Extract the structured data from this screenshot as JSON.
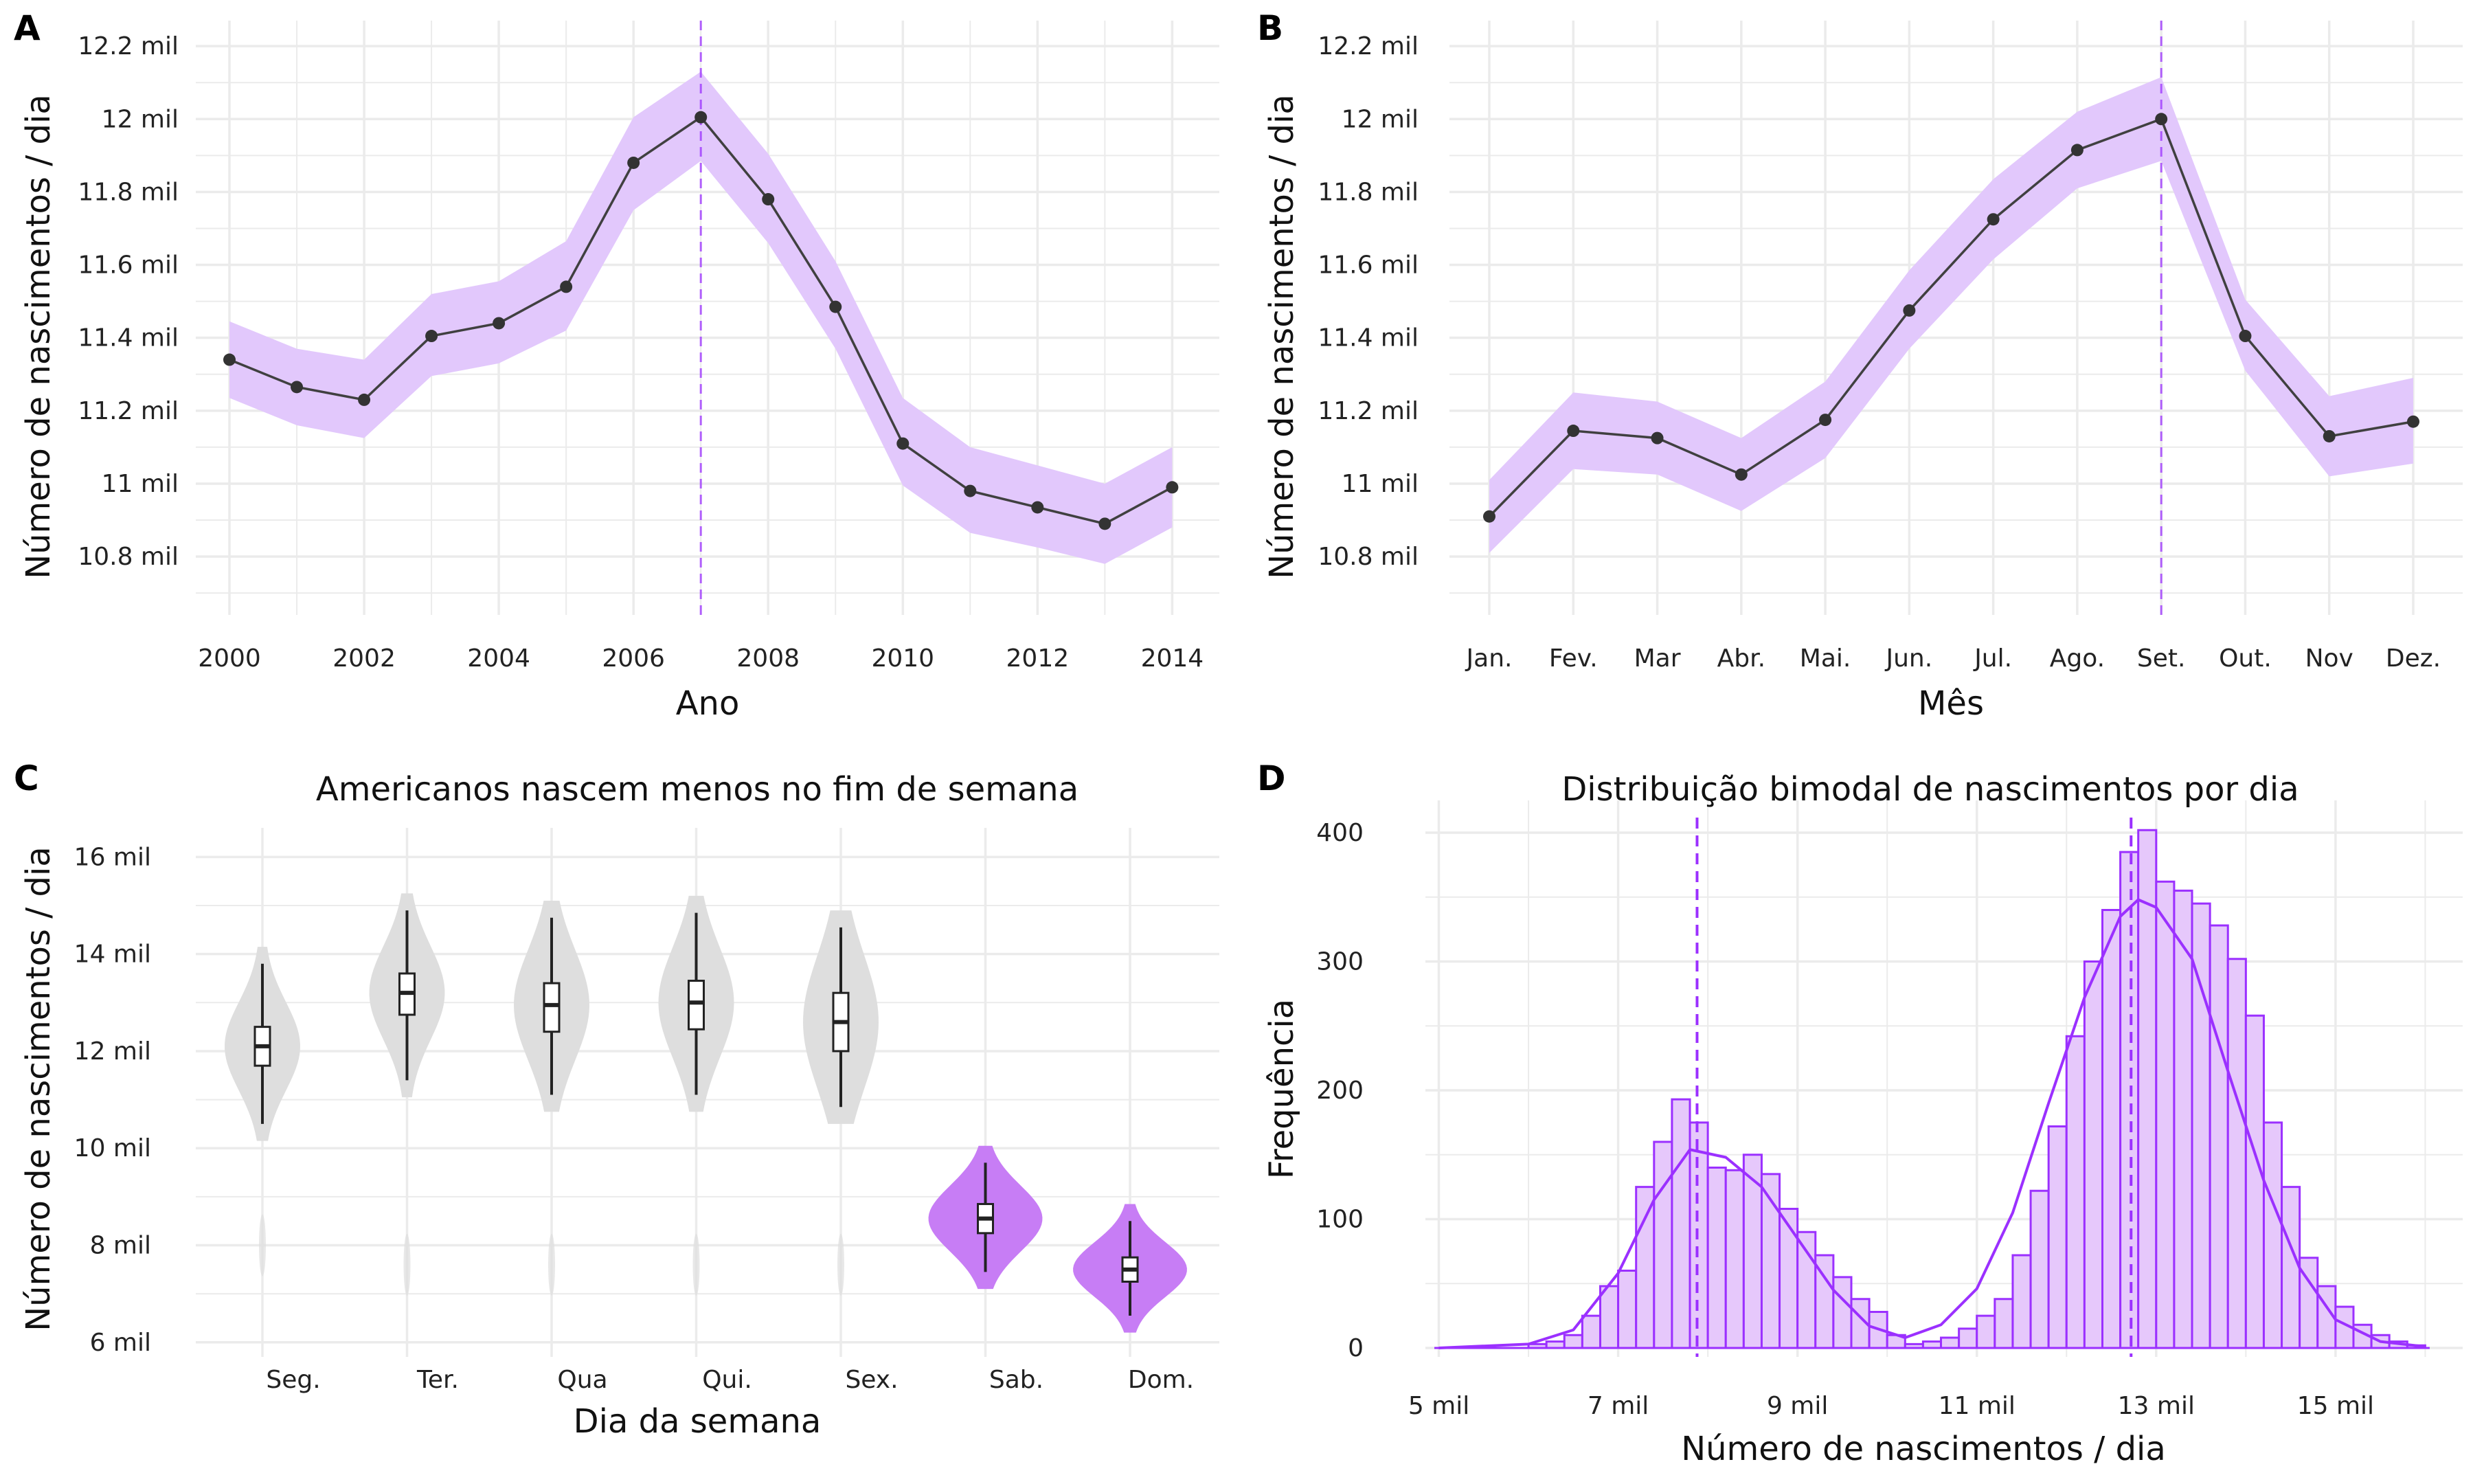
{
  "colors": {
    "accent": "#9b30ff",
    "band": "#e2c8fc",
    "line": "#404040",
    "point": "#333333",
    "violin_gray": "#dedede",
    "violin_purple": "#c77df5",
    "hist_fill": "#e6c8fb",
    "grid": "#ebebeb"
  },
  "panels": {
    "A": {
      "label": "A",
      "xlabel": "Ano",
      "ylabel": "Número de nascimentos / dia"
    },
    "B": {
      "label": "B",
      "xlabel": "Mês",
      "ylabel": "Número de nascimentos / dia"
    },
    "C": {
      "label": "C",
      "title": "Americanos nascem menos no fim de semana",
      "xlabel": "Dia da semana",
      "ylabel": "Número de nascimentos / dia"
    },
    "D": {
      "label": "D",
      "title": "Distribuição bimodal de nascimentos por dia",
      "xlabel": "Número de nascimentos / dia",
      "ylabel": "Frequência"
    }
  },
  "chart_data": [
    {
      "panel": "A",
      "type": "line",
      "x": [
        2000,
        2001,
        2002,
        2003,
        2004,
        2005,
        2006,
        2007,
        2008,
        2009,
        2010,
        2011,
        2012,
        2013,
        2014
      ],
      "series": [
        {
          "values": [
            11.34,
            11.265,
            11.23,
            11.405,
            11.44,
            11.54,
            11.88,
            12.005,
            11.78,
            11.485,
            11.11,
            10.98,
            10.935,
            10.89,
            10.99
          ],
          "lower": [
            11.235,
            11.16,
            11.125,
            11.295,
            11.33,
            11.42,
            11.75,
            11.885,
            11.66,
            11.37,
            10.995,
            10.865,
            10.825,
            10.78,
            10.88
          ],
          "upper": [
            11.445,
            11.37,
            11.34,
            11.52,
            11.555,
            11.665,
            12.005,
            12.13,
            11.905,
            11.61,
            11.235,
            11.1,
            11.05,
            11.0,
            11.1
          ]
        }
      ],
      "vline": 2007,
      "xticks": [
        2000,
        2002,
        2004,
        2006,
        2008,
        2010,
        2012,
        2014
      ],
      "xtick_labels": [
        "2000",
        "2002",
        "2004",
        "2006",
        "2008",
        "2010",
        "2012",
        "2014"
      ],
      "yticks": [
        10.8,
        11.0,
        11.2,
        11.4,
        11.6,
        11.8,
        12.0,
        12.2
      ],
      "ytick_labels": [
        "10.8 mil",
        "11 mil",
        "11.2 mil",
        "11.4 mil",
        "11.6 mil",
        "11.8 mil",
        "12 mil",
        "12.2 mil"
      ],
      "xlim": [
        1999.5,
        2014.7
      ],
      "ylim": [
        10.64,
        12.27
      ],
      "grid": true
    },
    {
      "panel": "B",
      "type": "line",
      "categories": [
        "Jan.",
        "Fev.",
        "Mar",
        "Abr.",
        "Mai.",
        "Jun.",
        "Jul.",
        "Ago.",
        "Set.",
        "Out.",
        "Nov",
        "Dez."
      ],
      "series": [
        {
          "values": [
            10.91,
            11.145,
            11.125,
            11.025,
            11.175,
            11.475,
            11.725,
            11.915,
            12.0,
            11.405,
            11.13,
            11.17
          ],
          "lower": [
            10.81,
            11.04,
            11.025,
            10.925,
            11.07,
            11.37,
            11.615,
            11.81,
            11.885,
            11.31,
            11.02,
            11.055
          ],
          "upper": [
            11.01,
            11.25,
            11.225,
            11.125,
            11.28,
            11.585,
            11.835,
            12.02,
            12.115,
            11.505,
            11.24,
            11.29
          ]
        }
      ],
      "vline": "Set.",
      "yticks": [
        10.8,
        11.0,
        11.2,
        11.4,
        11.6,
        11.8,
        12.0,
        12.2
      ],
      "ytick_labels": [
        "10.8 mil",
        "11 mil",
        "11.2 mil",
        "11.4 mil",
        "11.6 mil",
        "11.8 mil",
        "12 mil",
        "12.2 mil"
      ],
      "ylim": [
        10.64,
        12.27
      ],
      "grid": true
    },
    {
      "panel": "C",
      "type": "violin",
      "title": "Americanos nascem menos no fim de semana",
      "categories": [
        "Seg.",
        "Ter.",
        "Qua",
        "Qui.",
        "Sex.",
        "Sab.",
        "Dom."
      ],
      "medians": [
        12.1,
        13.2,
        12.95,
        13.0,
        12.6,
        8.55,
        7.5
      ],
      "q1": [
        11.7,
        12.75,
        12.4,
        12.45,
        12.0,
        8.25,
        7.25
      ],
      "q3": [
        12.5,
        13.6,
        13.4,
        13.45,
        13.2,
        8.85,
        7.75
      ],
      "whisker_low": [
        10.5,
        11.4,
        11.1,
        11.1,
        10.85,
        7.45,
        6.55
      ],
      "whisker_high": [
        13.8,
        14.9,
        14.75,
        14.85,
        14.55,
        9.7,
        8.5
      ],
      "weekend": [
        false,
        false,
        false,
        false,
        false,
        true,
        true
      ],
      "yticks": [
        6,
        8,
        10,
        12,
        14,
        16
      ],
      "ytick_labels": [
        "6 mil",
        "8 mil",
        "10 mil",
        "12 mil",
        "14 mil",
        "16 mil"
      ],
      "ylim": [
        5.7,
        16.6
      ],
      "grid": true
    },
    {
      "panel": "D",
      "type": "bar",
      "title": "Distribuição bimodal de nascimentos por dia",
      "bin_width": 0.2,
      "bin_starts": [
        6.0,
        6.2,
        6.4,
        6.6,
        6.8,
        7.0,
        7.2,
        7.4,
        7.6,
        7.8,
        8.0,
        8.2,
        8.4,
        8.6,
        8.8,
        9.0,
        9.2,
        9.4,
        9.6,
        9.8,
        10.0,
        10.2,
        10.4,
        10.6,
        10.8,
        11.0,
        11.2,
        11.4,
        11.6,
        11.8,
        12.0,
        12.2,
        12.4,
        12.6,
        12.8,
        13.0,
        13.2,
        13.4,
        13.6,
        13.8,
        14.0,
        14.2,
        14.4,
        14.6,
        14.8,
        15.0,
        15.2,
        15.4,
        15.6,
        15.8
      ],
      "values": [
        3,
        5,
        10,
        25,
        48,
        60,
        125,
        160,
        193,
        175,
        140,
        138,
        150,
        135,
        108,
        90,
        72,
        55,
        38,
        28,
        10,
        3,
        5,
        8,
        15,
        25,
        38,
        72,
        122,
        172,
        242,
        300,
        340,
        385,
        402,
        362,
        355,
        345,
        328,
        302,
        258,
        175,
        125,
        70,
        48,
        32,
        18,
        10,
        5,
        2
      ],
      "density_curve": [
        [
          5.0,
          0
        ],
        [
          6.0,
          3
        ],
        [
          6.5,
          14
        ],
        [
          7.0,
          58
        ],
        [
          7.4,
          115
        ],
        [
          7.8,
          154
        ],
        [
          8.2,
          148
        ],
        [
          8.6,
          125
        ],
        [
          9.0,
          85
        ],
        [
          9.4,
          45
        ],
        [
          9.8,
          17
        ],
        [
          10.2,
          8
        ],
        [
          10.6,
          18
        ],
        [
          11.0,
          46
        ],
        [
          11.4,
          105
        ],
        [
          11.8,
          190
        ],
        [
          12.2,
          272
        ],
        [
          12.6,
          335
        ],
        [
          12.8,
          348
        ],
        [
          13.0,
          342
        ],
        [
          13.4,
          302
        ],
        [
          13.8,
          215
        ],
        [
          14.2,
          130
        ],
        [
          14.6,
          62
        ],
        [
          15.0,
          22
        ],
        [
          15.5,
          5
        ],
        [
          16.0,
          1
        ]
      ],
      "vlines": [
        7.88,
        12.72
      ],
      "xticks": [
        5,
        7,
        9,
        11,
        13,
        15
      ],
      "xtick_labels": [
        "5 mil",
        "7 mil",
        "9 mil",
        "11 mil",
        "13 mil",
        "15 mil"
      ],
      "yticks": [
        0,
        100,
        200,
        300,
        400
      ],
      "ytick_labels": [
        "0",
        "100",
        "200",
        "300",
        "400"
      ],
      "xlim": [
        4.95,
        16.15
      ],
      "ylim": [
        -8,
        420
      ],
      "grid": true
    }
  ]
}
